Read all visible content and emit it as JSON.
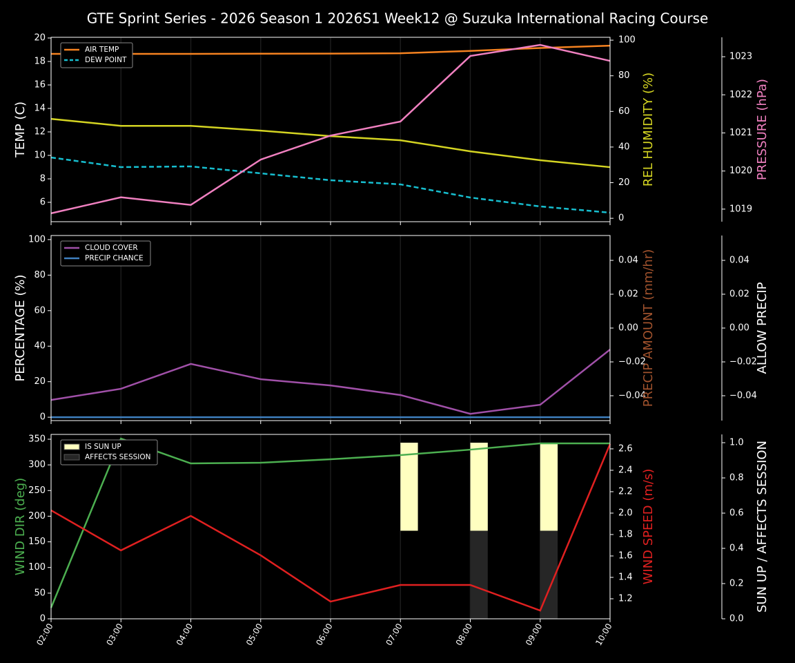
{
  "chart_data": {
    "type": "line",
    "title": "GTE Sprint Series - 2026 Season 1 2026S1 Week12 @ Suzuka International Racing Course",
    "categories": [
      "02:00",
      "03:00",
      "04:00",
      "05:00",
      "06:00",
      "07:00",
      "08:00",
      "09:00",
      "10:00"
    ],
    "panels": [
      {
        "legend": "upper left",
        "ylabel": "TEMP (C)",
        "ylim": [
          4.35,
          20.06
        ],
        "yticks": [
          6,
          8,
          10,
          12,
          14,
          16,
          18,
          20
        ],
        "y2label": "REL HUMIDITY (%)",
        "y2color": "#d4d422",
        "y2lim": [
          -1.9,
          101.6
        ],
        "y2ticks": [
          0,
          20,
          40,
          60,
          80,
          100
        ],
        "y3label": "PRESSURE (hPa)",
        "y3color": "#f080c0",
        "y3lim": [
          1018.67,
          1023.51
        ],
        "y3ticks": [
          1019,
          1020,
          1021,
          1022,
          1023
        ],
        "series": [
          {
            "name": "AIR TEMP",
            "type": "line",
            "color": "#f58220",
            "axis": "y",
            "legend": true,
            "values": [
              18.65,
              18.65,
              18.65,
              18.66,
              18.67,
              18.7,
              18.9,
              19.15,
              19.35
            ]
          },
          {
            "name": "DEW POINT",
            "type": "line",
            "color": "#17becf",
            "dash": true,
            "axis": "y",
            "legend": true,
            "values": [
              9.82,
              9.0,
              9.06,
              8.47,
              7.88,
              7.53,
              6.41,
              5.65,
              5.12
            ]
          },
          {
            "type": "line",
            "color": "#d4d422",
            "axis": "y2",
            "values": [
              55.8,
              51.9,
              51.9,
              49.2,
              46.1,
              43.8,
              37.6,
              32.6,
              28.7
            ]
          },
          {
            "type": "line",
            "color": "#f080c0",
            "axis": "y3",
            "values": [
              1018.89,
              1019.31,
              1019.11,
              1020.3,
              1020.93,
              1021.3,
              1023.02,
              1023.31,
              1022.89
            ]
          }
        ]
      },
      {
        "legend": "upper left",
        "ylabel": "PERCENTAGE (%)",
        "ylim": [
          -1.9,
          102.3
        ],
        "yticks": [
          0,
          20,
          40,
          60,
          80,
          100
        ],
        "y2label": "PRECIP AMOUNT (mm/hr)",
        "y2color": "#a0522d",
        "y2lim": [
          -0.0547,
          0.0547
        ],
        "y2ticks": [
          {
            "value": -0.04,
            "label": "−0.04"
          },
          {
            "value": -0.02,
            "label": "−0.02"
          },
          {
            "value": 0,
            "label": "0.00"
          },
          0.02,
          0.04
        ],
        "y3label": "ALLOW PRECIP",
        "y3color": "#ffffff",
        "y3lim": [
          -0.0547,
          0.0547
        ],
        "y3ticks": [
          {
            "value": -0.04,
            "label": "−0.04"
          },
          {
            "value": -0.02,
            "label": "−0.02"
          },
          {
            "value": 0,
            "label": "0.00"
          },
          0.02,
          0.04
        ],
        "series": [
          {
            "name": "CLOUD COVER",
            "type": "line",
            "color": "#a050a8",
            "axis": "y",
            "legend": true,
            "values": [
              9.7,
              16.0,
              30.0,
              21.4,
              17.9,
              12.5,
              1.9,
              7.0,
              38.1
            ]
          },
          {
            "name": "PRECIP CHANCE",
            "type": "line",
            "color": "#3f80c0",
            "axis": "y",
            "legend": true,
            "values": [
              0,
              0,
              0,
              0,
              0,
              0,
              0,
              0,
              0
            ]
          }
        ]
      },
      {
        "legend": "upper left",
        "ylabel": "WIND DIR (deg)",
        "ycolor": "#4caf50",
        "ylim": [
          0,
          359.4
        ],
        "yticks": [
          0,
          50,
          100,
          150,
          200,
          250,
          300,
          350
        ],
        "y2label": "WIND SPEED (m/s)",
        "y2color": "#e02020",
        "y2lim": [
          1.013,
          2.735
        ],
        "y2ticks": [
          1.2,
          1.4,
          1.6,
          1.8,
          {
            "value": 2,
            "label": "2.0"
          },
          2.2,
          2.4,
          2.6
        ],
        "y3label": "SUN UP / AFFECTS SESSION",
        "y3color": "#ffffff",
        "y3lim": [
          0,
          1.047
        ],
        "y3ticks": [
          {
            "value": 0,
            "label": "0.0"
          },
          0.2,
          0.4,
          0.6,
          0.8,
          {
            "value": 1,
            "label": "1.0"
          }
        ],
        "series": [
          {
            "name": "IS SUN UP",
            "type": "bar",
            "color": "#ffffc0",
            "axis": "y3",
            "bottom": 0.5,
            "legend": true,
            "values": [
              0,
              0,
              0,
              0,
              0,
              0.5,
              0.5,
              0.5,
              0
            ]
          },
          {
            "name": "AFFECTS SESSION",
            "type": "bar",
            "color": "#262626",
            "axis": "y3",
            "bottom": 0,
            "legend": true,
            "values": [
              0,
              0,
              0,
              0,
              0,
              0,
              0.5,
              0.5,
              0
            ]
          },
          {
            "type": "line",
            "color": "#4caf50",
            "axis": "y",
            "values": [
              21.5,
              351.3,
              302.8,
              304.2,
              310.9,
              319.0,
              329.7,
              341.9,
              341.9
            ]
          },
          {
            "type": "line",
            "color": "#e02020",
            "axis": "y2",
            "values": [
              2.026,
              1.652,
              1.974,
              1.606,
              1.174,
              1.329,
              1.329,
              1.09,
              2.645
            ]
          }
        ]
      }
    ]
  }
}
